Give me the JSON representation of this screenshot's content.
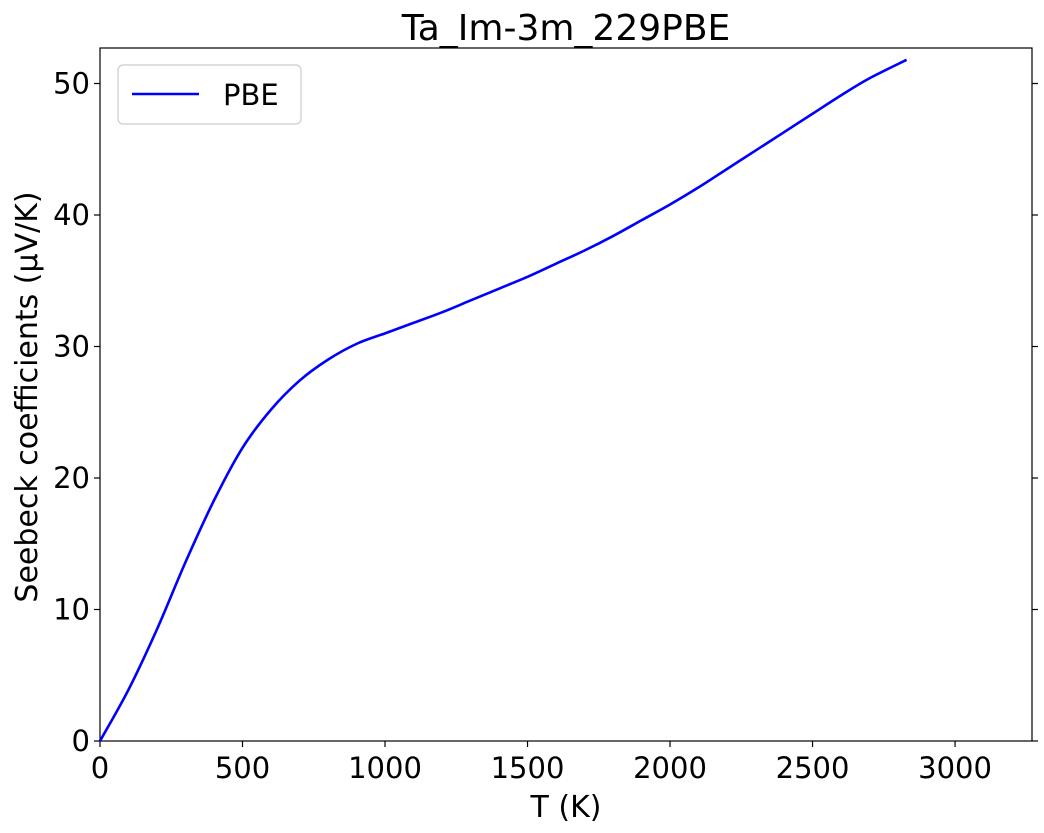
{
  "chart_data": {
    "type": "line",
    "title": "Ta_Im-3m_229PBE",
    "xlabel": "T (K)",
    "ylabel": "Seebeck coefficients (µV/K)",
    "xlim": [
      0,
      3270
    ],
    "ylim": [
      0,
      52.7
    ],
    "xticks": [
      0,
      500,
      1000,
      1500,
      2000,
      2500,
      3000
    ],
    "yticks": [
      0,
      10,
      20,
      30,
      40,
      50
    ],
    "legend": "top-left",
    "grid": false,
    "series": [
      {
        "name": "PBE",
        "color": "#0000ff",
        "x": [
          0,
          100,
          200,
          300,
          400,
          500,
          600,
          700,
          800,
          900,
          1000,
          1100,
          1200,
          1300,
          1400,
          1500,
          1600,
          1700,
          1800,
          1900,
          2000,
          2100,
          2200,
          2300,
          2400,
          2500,
          2600,
          2700,
          2830
        ],
        "y": [
          0,
          3.9,
          8.5,
          13.6,
          18.3,
          22.3,
          25.2,
          27.4,
          29.0,
          30.2,
          31.0,
          31.8,
          32.6,
          33.5,
          34.4,
          35.3,
          36.3,
          37.3,
          38.4,
          39.6,
          40.8,
          42.1,
          43.5,
          44.9,
          46.3,
          47.7,
          49.1,
          50.4,
          51.8
        ]
      }
    ]
  }
}
